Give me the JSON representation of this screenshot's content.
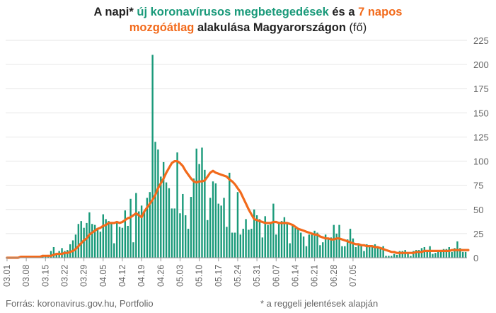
{
  "title": {
    "line1": {
      "p1": "A napi* ",
      "p2": "új koronavírusos megbetegedések",
      "p3": " és a ",
      "p4": "7 napos"
    },
    "line2": {
      "p1": "mozgóátlag",
      "p2": " alakulása Magyarországon",
      "p3": " (fő)"
    }
  },
  "footer": {
    "source": "Forrás: koronavirus.gov.hu, Portfolio",
    "note": "* a reggeli jelentések alapján"
  },
  "colors": {
    "bars": "#1a9a7a",
    "line": "#f26a1b",
    "grid": "#e6e6e6",
    "text": "#666666"
  },
  "chart_data": {
    "type": "bar",
    "x_start": "03.01",
    "x_ticks": [
      "03.01",
      "03.08",
      "03.15",
      "03.22",
      "03.29",
      "04.05",
      "04.12",
      "04.19",
      "04.26",
      "05.03",
      "05.10",
      "05.17",
      "05.24",
      "05.31",
      "06.07",
      "06.14",
      "06.21",
      "06.28",
      "07.05"
    ],
    "y_ticks": [
      0,
      25,
      50,
      75,
      100,
      125,
      150,
      175,
      200,
      225
    ],
    "ylim": [
      0,
      225
    ],
    "series": [
      {
        "type": "bar",
        "values": [
          0,
          0,
          0,
          0,
          0,
          0,
          0,
          0,
          0,
          0,
          0,
          2,
          2,
          3,
          2,
          3,
          7,
          11,
          3,
          7,
          10,
          7,
          8,
          14,
          18,
          24,
          35,
          38,
          31,
          36,
          47,
          35,
          34,
          29,
          27,
          45,
          40,
          38,
          36,
          15,
          36,
          32,
          31,
          49,
          33,
          61,
          16,
          67,
          48,
          54,
          48,
          62,
          68,
          210,
          120,
          112,
          84,
          99,
          78,
          72,
          51,
          51,
          109,
          46,
          66,
          44,
          30,
          63,
          82,
          113,
          97,
          114,
          91,
          39,
          62,
          79,
          77,
          56,
          54,
          62,
          32,
          88,
          26,
          26,
          68,
          24,
          30,
          40,
          29,
          30,
          50,
          44,
          40,
          21,
          43,
          34,
          37,
          56,
          24,
          35,
          38,
          42,
          37,
          15,
          33,
          31,
          30,
          26,
          22,
          12,
          24,
          24,
          28,
          26,
          13,
          16,
          24,
          19,
          21,
          34,
          25,
          34,
          12,
          12,
          19,
          30,
          20,
          11,
          15,
          12,
          7,
          14,
          11,
          12,
          14,
          10,
          10,
          12,
          2,
          2,
          2,
          4,
          3,
          7,
          7,
          8,
          5,
          2,
          7,
          8,
          8,
          10,
          11,
          7,
          12,
          4,
          5,
          8,
          6,
          9,
          9,
          11,
          6,
          10,
          17,
          10,
          6,
          6
        ]
      },
      {
        "type": "line",
        "values": [
          0,
          0,
          0,
          0,
          0,
          1,
          1,
          1,
          1,
          1,
          1,
          1,
          1,
          2,
          2,
          2,
          2,
          3,
          4,
          4,
          4,
          5,
          5,
          6,
          7,
          9,
          12,
          15,
          18,
          20,
          24,
          26,
          28,
          30,
          31,
          33,
          34,
          36,
          36,
          36,
          37,
          36,
          37,
          39,
          41,
          42,
          44,
          46,
          44,
          42,
          48,
          52,
          56,
          60,
          65,
          72,
          77,
          82,
          88,
          93,
          98,
          100,
          100,
          98,
          95,
          90,
          86,
          82,
          79,
          78,
          79,
          79,
          80,
          84,
          88,
          90,
          88,
          87,
          86,
          85,
          84,
          81,
          79,
          76,
          72,
          68,
          62,
          56,
          50,
          45,
          40,
          39,
          38,
          37,
          36,
          36,
          36,
          37,
          37,
          36,
          36,
          36,
          36,
          35,
          34,
          32,
          30,
          29,
          28,
          27,
          26,
          25,
          24,
          24,
          22,
          21,
          20,
          20,
          19,
          19,
          20,
          20,
          19,
          18,
          17,
          16,
          15,
          14,
          14,
          13,
          13,
          12,
          12,
          12,
          11,
          11,
          10,
          9,
          8,
          7,
          6,
          6,
          5,
          5,
          5,
          5,
          5,
          5,
          5,
          6,
          6,
          6,
          7,
          7,
          7,
          7,
          7,
          7,
          7,
          7,
          7,
          7,
          8,
          8,
          8,
          8,
          8,
          8,
          8
        ]
      }
    ]
  }
}
